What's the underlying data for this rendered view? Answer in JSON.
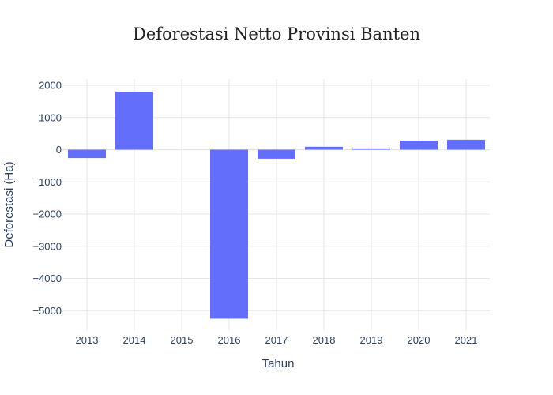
{
  "chart_data": {
    "type": "bar",
    "title": "Deforestasi Netto Provinsi Banten",
    "xlabel": "Tahun",
    "ylabel": "Deforestasi (Ha)",
    "categories": [
      "2013",
      "2014",
      "2015",
      "2016",
      "2017",
      "2018",
      "2019",
      "2020",
      "2021"
    ],
    "values": [
      -260,
      1800,
      0,
      -5250,
      -280,
      90,
      40,
      280,
      310
    ],
    "y_ticks": [
      2000,
      1000,
      0,
      -1000,
      -2000,
      -3000,
      -4000,
      -5000
    ],
    "y_tick_labels": [
      "2000",
      "1000",
      "0",
      "−1000",
      "−2000",
      "−3000",
      "−4000",
      "−5000"
    ],
    "ylim": [
      -5600,
      2200
    ],
    "grid": true,
    "bar_color": "#636efa",
    "grid_color": "#e5e5e5"
  }
}
